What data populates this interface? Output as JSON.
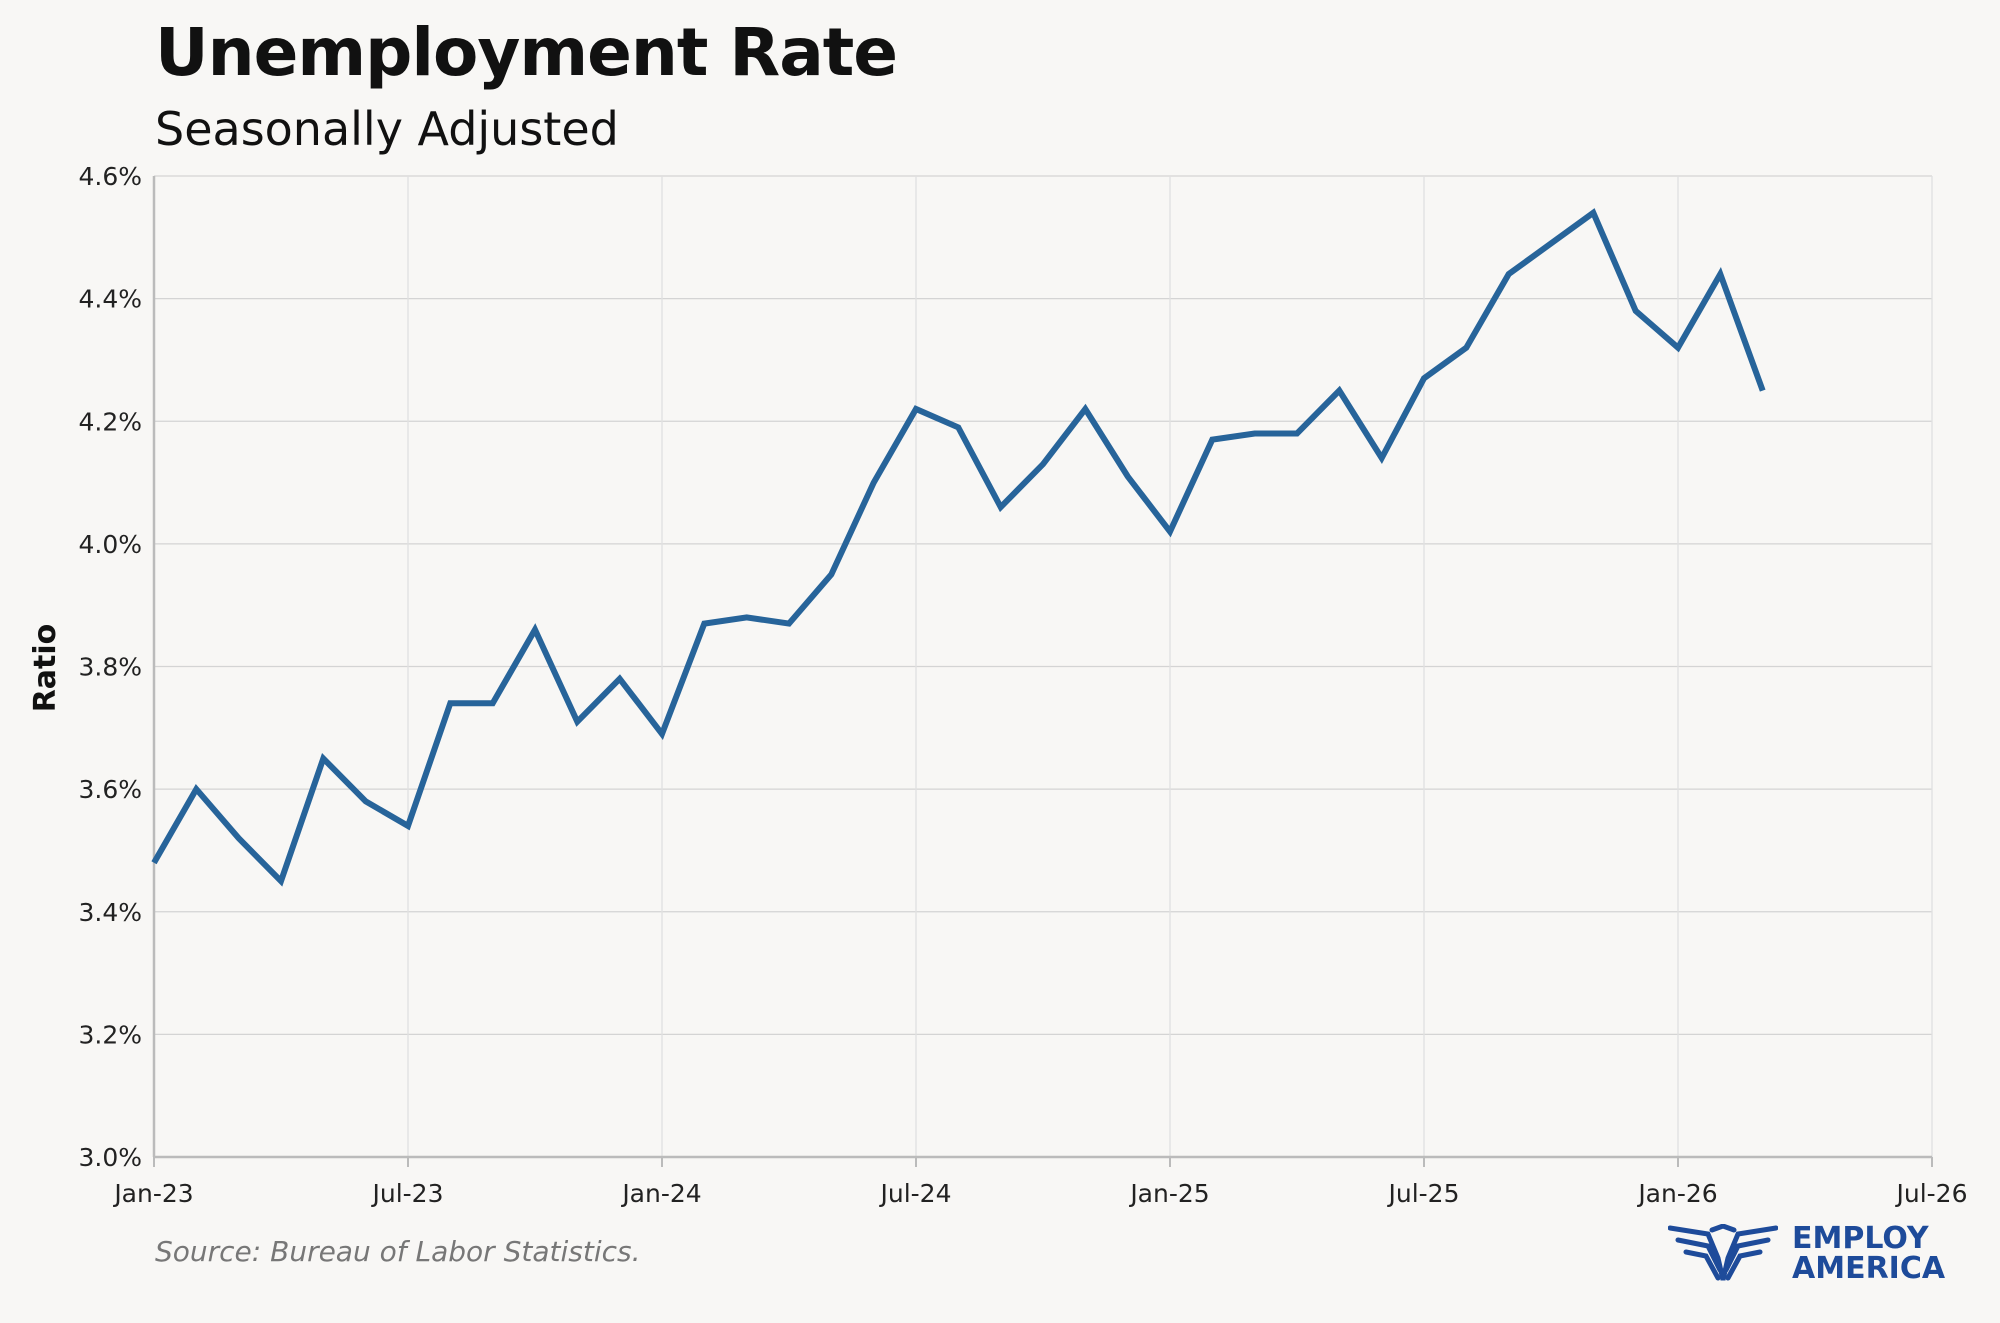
{
  "chart_data": {
    "type": "line",
    "title": "Unemployment Rate",
    "subtitle": "Seasonally Adjusted",
    "ylabel": "Ratio",
    "xlabel": "",
    "ylim": [
      3.0,
      4.6
    ],
    "xlim": [
      "2023-01",
      "2026-07"
    ],
    "y_ticks": [
      "3.0%",
      "3.2%",
      "3.4%",
      "3.6%",
      "3.8%",
      "4.0%",
      "4.2%",
      "4.4%",
      "4.6%"
    ],
    "y_tick_values": [
      3.0,
      3.2,
      3.4,
      3.6,
      3.8,
      4.0,
      4.2,
      4.4,
      4.6
    ],
    "x_ticks": [
      "Jan-23",
      "Jul-23",
      "Jan-24",
      "Jul-24",
      "Jan-25",
      "Jul-25",
      "Jan-26",
      "Jul-26"
    ],
    "x_tick_values": [
      "2023-01",
      "2023-07",
      "2024-01",
      "2024-07",
      "2025-01",
      "2025-07",
      "2026-01",
      "2026-07"
    ],
    "grid": true,
    "line_color": "#27649a",
    "x": [
      "2023-01",
      "2023-02",
      "2023-03",
      "2023-04",
      "2023-05",
      "2023-06",
      "2023-07",
      "2023-08",
      "2023-09",
      "2023-10",
      "2023-11",
      "2023-12",
      "2024-01",
      "2024-02",
      "2024-03",
      "2024-04",
      "2024-05",
      "2024-06",
      "2024-07",
      "2024-08",
      "2024-09",
      "2024-10",
      "2024-11",
      "2024-12",
      "2025-01",
      "2025-02",
      "2025-03",
      "2025-04",
      "2025-05",
      "2025-06",
      "2025-07",
      "2025-08",
      "2025-09",
      "2025-11",
      "2025-12",
      "2026-01",
      "2026-02",
      "2026-03"
    ],
    "values": [
      3.48,
      3.6,
      3.52,
      3.45,
      3.65,
      3.58,
      3.54,
      3.74,
      3.74,
      3.86,
      3.71,
      3.78,
      3.69,
      3.87,
      3.88,
      3.87,
      3.95,
      4.1,
      4.22,
      4.19,
      4.06,
      4.13,
      4.22,
      4.11,
      4.02,
      4.17,
      4.18,
      4.18,
      4.25,
      4.14,
      4.27,
      4.32,
      4.44,
      4.54,
      4.38,
      4.32,
      4.44,
      4.25
    ]
  },
  "source": "Source: Bureau of Labor Statistics.",
  "logo": {
    "line1": "EMPLOY",
    "line2": "AMERICA",
    "color": "#1e4b9a"
  }
}
